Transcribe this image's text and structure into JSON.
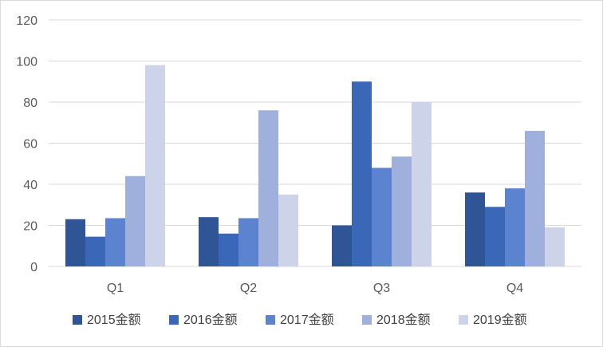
{
  "chart_data": {
    "type": "bar",
    "categories": [
      "Q1",
      "Q2",
      "Q3",
      "Q4"
    ],
    "series": [
      {
        "name": "2015金额",
        "values": [
          23,
          24,
          20,
          36
        ],
        "color": "#2f5597"
      },
      {
        "name": "2016金额",
        "values": [
          14.5,
          16,
          90,
          29
        ],
        "color": "#3a67b8"
      },
      {
        "name": "2017金额",
        "values": [
          23.5,
          23.5,
          48,
          38
        ],
        "color": "#5b83cf"
      },
      {
        "name": "2018金额",
        "values": [
          44,
          76,
          53.5,
          66
        ],
        "color": "#9fb0dc"
      },
      {
        "name": "2019金额",
        "values": [
          98,
          35,
          80,
          19
        ],
        "color": "#cdd3e9"
      }
    ],
    "ylim": [
      0,
      120
    ],
    "yticks": [
      0,
      20,
      40,
      60,
      80,
      100,
      120
    ],
    "title": "",
    "xlabel": "",
    "ylabel": "",
    "grid": true,
    "legend_position": "bottom",
    "colors": {
      "grid": "#d9d9d9",
      "axis": "#d9d9d9",
      "text": "#595959"
    }
  }
}
